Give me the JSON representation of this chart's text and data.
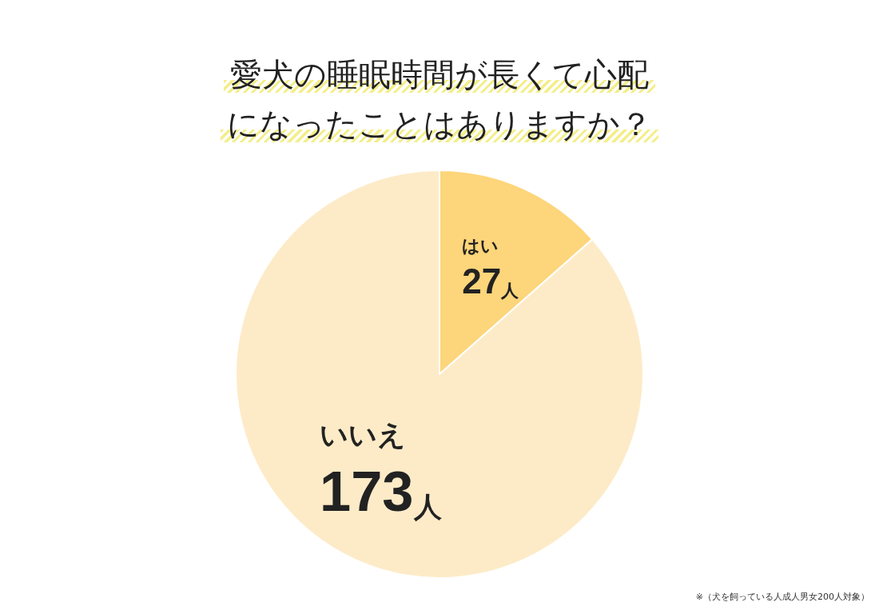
{
  "chart_data": {
    "type": "pie",
    "title": "愛犬の睡眠時間が長くて心配になったことはありますか？",
    "categories": [
      "はい",
      "いいえ"
    ],
    "values": [
      27,
      173
    ],
    "colors": [
      "#fdd57a",
      "#fdebc8"
    ],
    "value_labels": [
      "27人",
      "173人"
    ],
    "annotations": [
      "※（犬を飼っている人成人男女200人対象）"
    ]
  }
}
